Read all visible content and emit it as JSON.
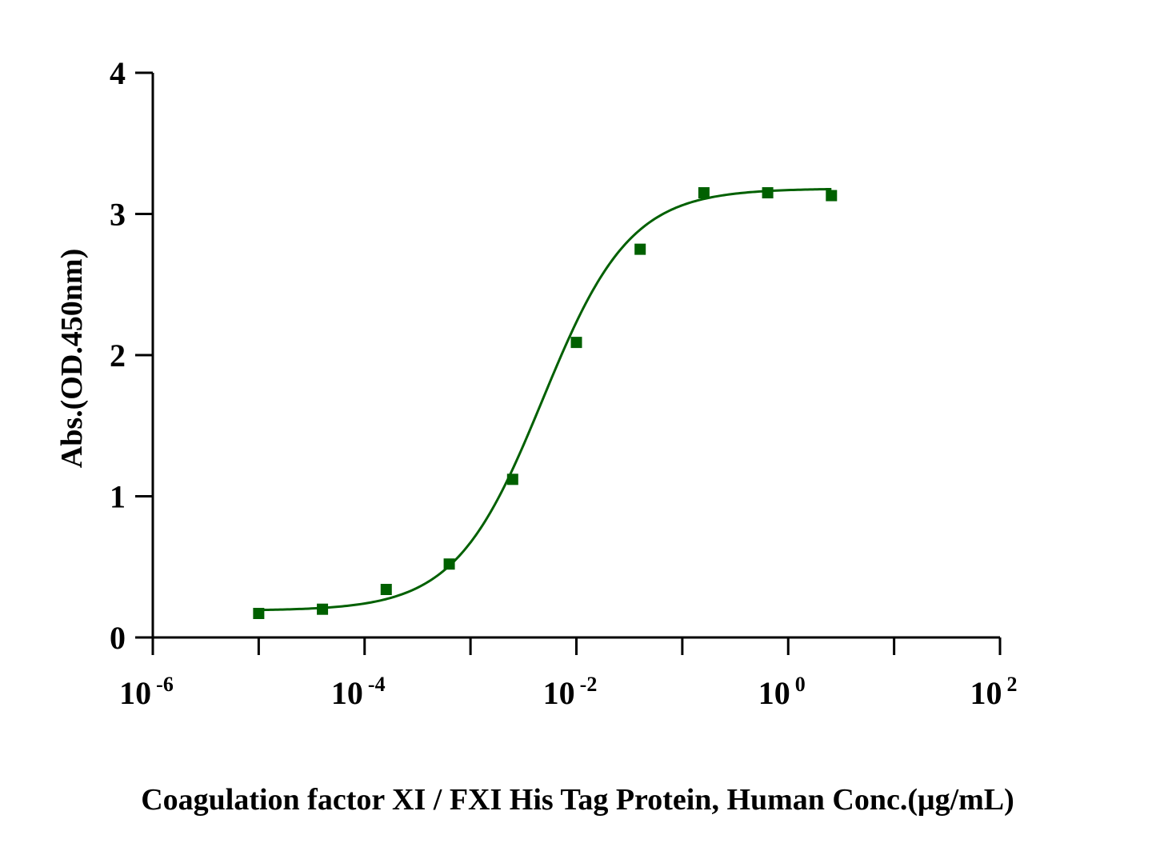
{
  "chart_data": {
    "type": "scatter",
    "xlabel": "Coagulation factor XI / FXI His Tag Protein, Human Conc.(μg/mL)",
    "ylabel": "Abs.(OD.450nm)",
    "x_scale": "log",
    "xlim": [
      1e-06,
      100
    ],
    "ylim": [
      0,
      4
    ],
    "x_ticks": [
      {
        "base": "10",
        "exp": "-6"
      },
      {
        "base": "10",
        "exp": "-4"
      },
      {
        "base": "10",
        "exp": "-2"
      },
      {
        "base": "10",
        "exp": "0"
      },
      {
        "base": "10",
        "exp": "2"
      }
    ],
    "y_ticks": [
      "0",
      "1",
      "2",
      "3",
      "4"
    ],
    "grid": false,
    "colors": {
      "series": "#006000",
      "axis": "#000000"
    },
    "series": [
      {
        "x": [
          1e-05,
          4e-05,
          0.00016,
          0.00063,
          0.0025,
          0.01,
          0.04,
          0.16,
          0.64,
          2.56
        ],
        "y": [
          0.17,
          0.2,
          0.34,
          0.52,
          1.12,
          2.09,
          2.75,
          3.15,
          3.15,
          3.13
        ],
        "marker": "square",
        "fit": {
          "model": "4PL",
          "bottom": 0.19,
          "top": 3.18,
          "ec50": 0.0048,
          "hill": 1.05,
          "x_range": [
            1e-05,
            2.56
          ]
        }
      }
    ]
  }
}
